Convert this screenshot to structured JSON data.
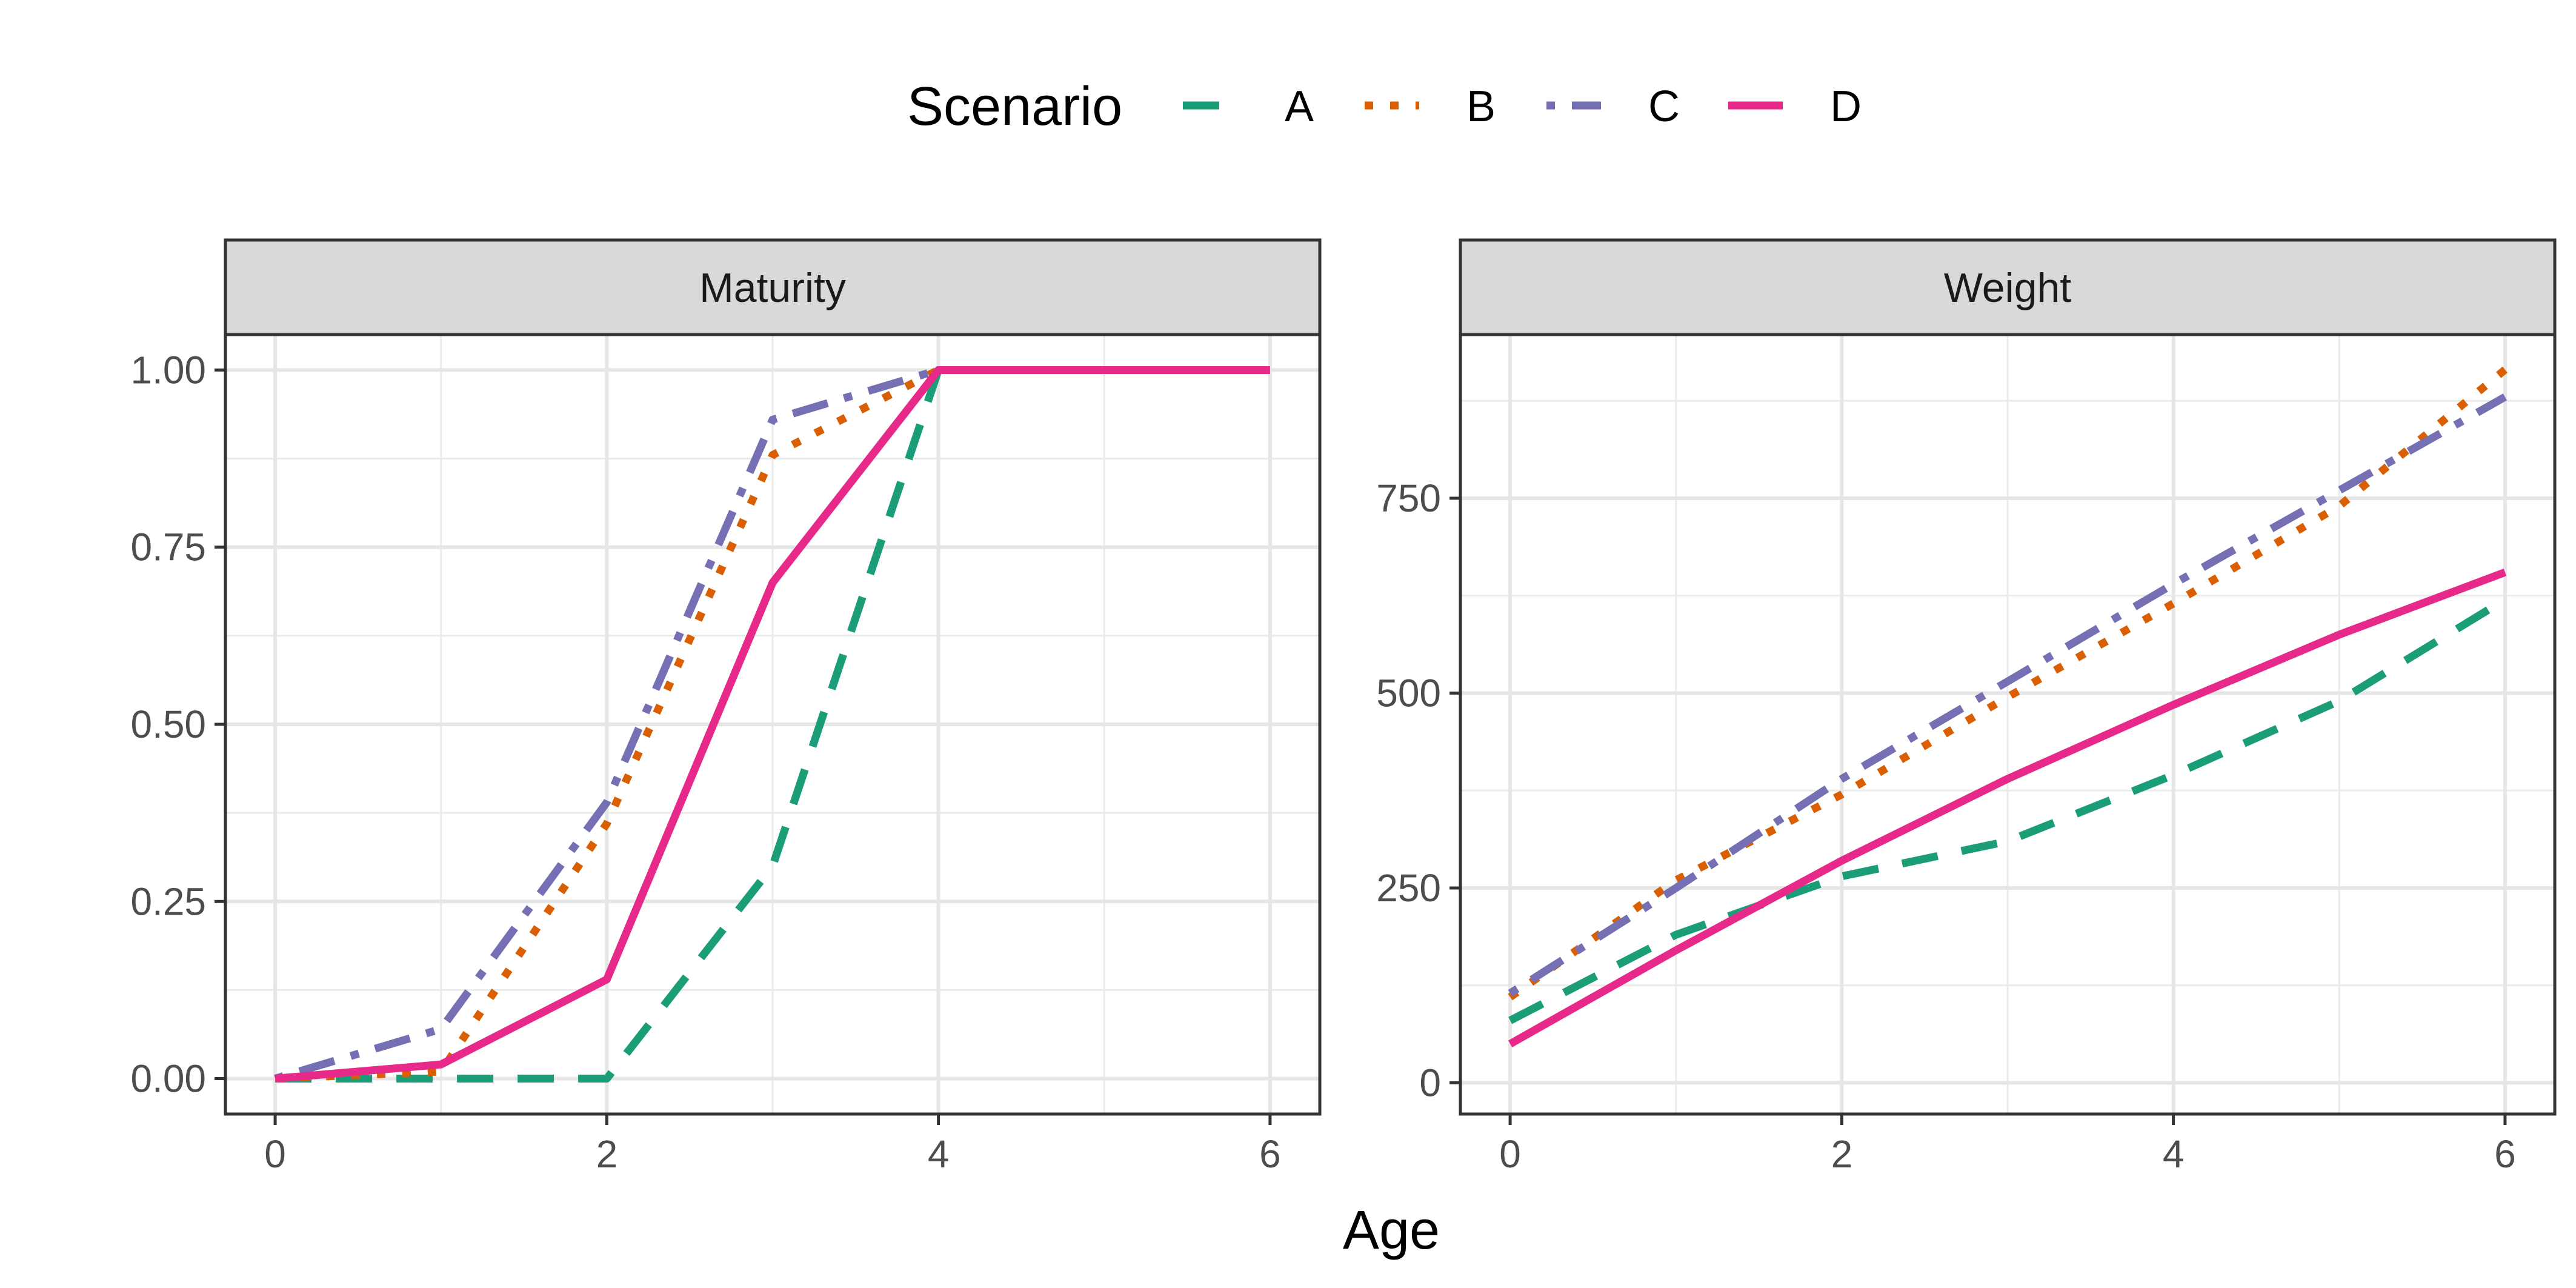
{
  "legend": {
    "title": "Scenario",
    "position": "top"
  },
  "xlabel": "Age",
  "colors": {
    "A": "#1b9e77",
    "B": "#d95f02",
    "C": "#7570b3",
    "D": "#e7298a"
  },
  "chart_data": [
    {
      "type": "line",
      "title": "Maturity",
      "xlim": [
        0,
        6
      ],
      "ylim": [
        -0.05,
        1.05
      ],
      "xticks": [
        0,
        2,
        4,
        6
      ],
      "yticks": [
        0,
        0.25,
        0.5,
        0.75,
        1.0
      ],
      "ytick_labels": [
        "0.00",
        "0.25",
        "0.50",
        "0.75",
        "1.00"
      ],
      "grid": true,
      "series": [
        {
          "name": "A",
          "linestyle": "dashed",
          "x": [
            0,
            1,
            2,
            3,
            4
          ],
          "y": [
            0,
            0,
            0,
            0.3,
            1.0
          ]
        },
        {
          "name": "B",
          "linestyle": "dotted",
          "x": [
            0,
            1,
            2,
            3,
            4
          ],
          "y": [
            0,
            0.01,
            0.36,
            0.88,
            1.0
          ]
        },
        {
          "name": "C",
          "linestyle": "dotdash",
          "x": [
            0,
            1,
            2,
            3,
            4
          ],
          "y": [
            0,
            0.07,
            0.39,
            0.93,
            1.0
          ]
        },
        {
          "name": "D",
          "linestyle": "solid",
          "x": [
            0,
            1,
            2,
            3,
            4,
            5,
            6
          ],
          "y": [
            0,
            0.02,
            0.14,
            0.7,
            1.0,
            1.0,
            1.0
          ]
        }
      ]
    },
    {
      "type": "line",
      "title": "Weight",
      "xlim": [
        0,
        6
      ],
      "ylim": [
        -40,
        960
      ],
      "xticks": [
        0,
        2,
        4,
        6
      ],
      "yticks": [
        0,
        250,
        500,
        750
      ],
      "ytick_labels": [
        "0",
        "250",
        "500",
        "750"
      ],
      "grid": true,
      "series": [
        {
          "name": "A",
          "linestyle": "dashed",
          "x": [
            0,
            1,
            2,
            3,
            4,
            5,
            6
          ],
          "y": [
            80,
            190,
            265,
            310,
            395,
            490,
            620
          ]
        },
        {
          "name": "B",
          "linestyle": "dotted",
          "x": [
            0,
            1,
            2,
            3,
            4,
            5,
            6
          ],
          "y": [
            110,
            260,
            370,
            495,
            615,
            740,
            915
          ]
        },
        {
          "name": "C",
          "linestyle": "dotdash",
          "x": [
            0,
            1,
            2,
            3,
            4,
            5,
            6
          ],
          "y": [
            115,
            250,
            390,
            515,
            640,
            760,
            880
          ]
        },
        {
          "name": "D",
          "linestyle": "solid",
          "x": [
            0,
            1,
            2,
            3,
            4,
            5,
            6
          ],
          "y": [
            50,
            170,
            285,
            390,
            485,
            575,
            655
          ]
        }
      ]
    }
  ]
}
